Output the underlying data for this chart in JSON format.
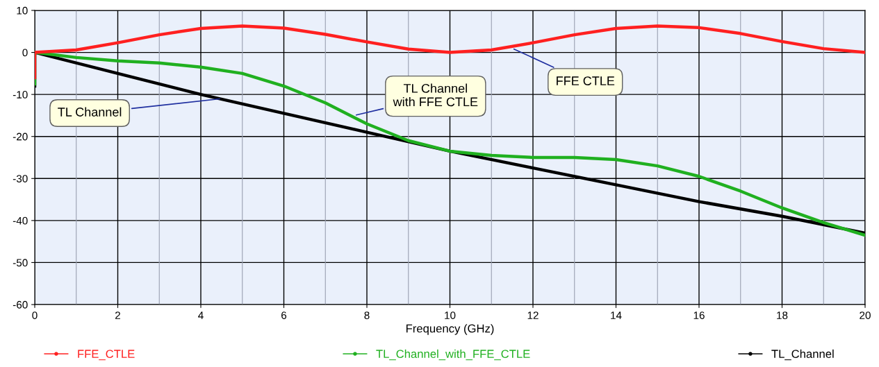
{
  "chart_data": {
    "type": "line",
    "xlabel": "Frequency (GHz)",
    "xlim": [
      0,
      20
    ],
    "xticks": [
      0,
      2,
      4,
      6,
      8,
      10,
      12,
      14,
      16,
      18,
      20
    ],
    "ylim": [
      -60,
      10
    ],
    "yticks": [
      -60,
      -50,
      -40,
      -30,
      -20,
      -10,
      0,
      10
    ],
    "grid": true,
    "legend": "bottom",
    "line_style": "solid",
    "series": [
      {
        "name": "FFE_CTLE",
        "color": "#ff2020",
        "x": [
          0,
          0,
          1,
          2,
          3,
          4,
          5,
          6,
          7,
          8,
          9,
          10,
          11,
          12,
          13,
          14,
          15,
          16,
          17,
          18,
          19,
          20
        ],
        "values": [
          -6,
          0,
          0.6,
          2.3,
          4.2,
          5.7,
          6.3,
          5.8,
          4.3,
          2.5,
          0.8,
          0,
          0.6,
          2.3,
          4.2,
          5.7,
          6.3,
          5.9,
          4.5,
          2.6,
          0.9,
          0
        ]
      },
      {
        "name": "TL_Channel_with_FFE_CTLE",
        "color": "#20b020",
        "x": [
          0,
          0,
          1,
          2,
          3,
          4,
          5,
          6,
          7,
          8,
          9,
          10,
          11,
          12,
          13,
          14,
          15,
          16,
          17,
          18,
          19,
          20
        ],
        "values": [
          -7.5,
          0,
          -1.2,
          -2,
          -2.5,
          -3.5,
          -5,
          -8,
          -12,
          -17,
          -21,
          -23.5,
          -24.5,
          -25,
          -25,
          -25.5,
          -27,
          -29.5,
          -33,
          -37,
          -40.5,
          -43.5
        ]
      },
      {
        "name": "TL_Channel",
        "color": "#000000",
        "x": [
          0,
          0,
          2,
          4,
          6,
          8,
          10,
          12,
          14,
          16,
          18,
          20
        ],
        "values": [
          -8,
          0,
          -5,
          -10,
          -14.5,
          -19,
          -23.5,
          -27.5,
          -31.5,
          -35.5,
          -39,
          -43
        ]
      }
    ],
    "annotations": [
      {
        "text": "FFE CTLE",
        "x": 11.5,
        "y": 1
      },
      {
        "text": "TL Channel\nwith FFE CTLE",
        "x": 7.7,
        "y": -15
      },
      {
        "text": "TL Channel",
        "x": 4.5,
        "y": -11
      }
    ]
  }
}
